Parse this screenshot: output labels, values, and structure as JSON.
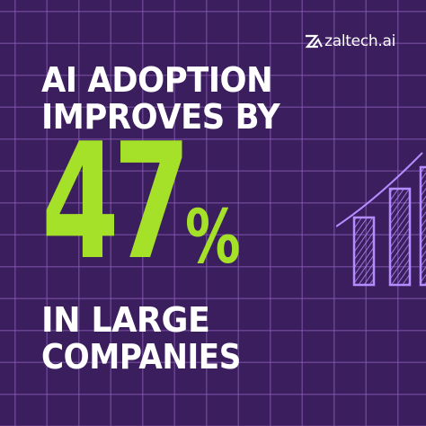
{
  "brand": {
    "name": "zaltech.ai"
  },
  "headline": {
    "line1": "AI ADOPTION",
    "line2": "IMPROVES BY",
    "stat_number": "47",
    "stat_unit": "%",
    "line3": "IN LARGE",
    "line4": "COMPANIES"
  },
  "colors": {
    "background": "#3b1e5e",
    "grid": "#8c5fb9",
    "text": "#ffffff",
    "accent": "#a6e12a",
    "chart_stroke": "#b48cff"
  },
  "icons": {
    "logo": "zaltech-z-logo-icon",
    "chart": "bar-chart-growth-icon"
  }
}
